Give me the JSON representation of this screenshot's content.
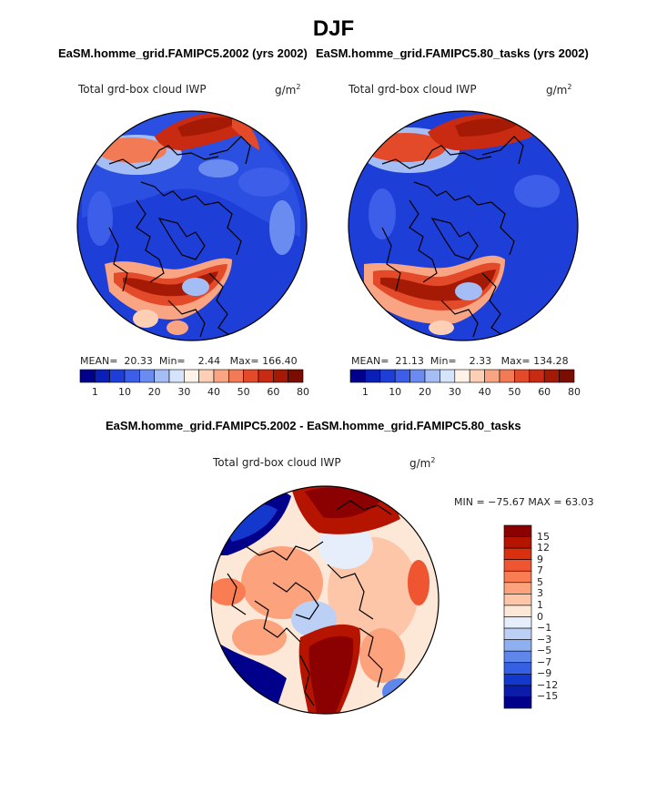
{
  "figure": {
    "season_title": "DJF",
    "panel_left_title": "EaSM.homme_grid.FAMIPC5.2002 (yrs 2002)",
    "panel_right_title": "EaSM.homme_grid.FAMIPC5.80_tasks (yrs 2002)",
    "panel_diff_title": "EaSM.homme_grid.FAMIPC5.2002 - EaSM.homme_grid.FAMIPC5.80_tasks"
  },
  "chart_data": [
    {
      "type": "heatmap",
      "projection": "north polar stereographic",
      "title": "EaSM.homme_grid.FAMIPC5.2002 (yrs 2002)",
      "variable": "Total grd-box cloud IWP",
      "units_label": "g/m",
      "units_exp": "2",
      "stats": {
        "mean": "20.33",
        "min": "2.44",
        "max": "166.40"
      },
      "colorbar_levels": [
        "1",
        "10",
        "20",
        "30",
        "40",
        "50",
        "60",
        "80"
      ],
      "colorbar_colors": [
        "#00008b",
        "#0a1fb8",
        "#1e3ed8",
        "#3d5ee8",
        "#6a8cf0",
        "#a4bdf5",
        "#d5e3fb",
        "#fff2e8",
        "#fdcfb4",
        "#f9a583",
        "#f27a55",
        "#e24a2a",
        "#c82a12",
        "#a51a05",
        "#7a0c00"
      ]
    },
    {
      "type": "heatmap",
      "projection": "north polar stereographic",
      "title": "EaSM.homme_grid.FAMIPC5.80_tasks (yrs 2002)",
      "variable": "Total grd-box cloud IWP",
      "units_label": "g/m",
      "units_exp": "2",
      "stats": {
        "mean": "21.13",
        "min": "2.33",
        "max": "134.28"
      },
      "colorbar_levels": [
        "1",
        "10",
        "20",
        "30",
        "40",
        "50",
        "60",
        "80"
      ],
      "colorbar_colors": [
        "#00008b",
        "#0a1fb8",
        "#1e3ed8",
        "#3d5ee8",
        "#6a8cf0",
        "#a4bdf5",
        "#d5e3fb",
        "#fff2e8",
        "#fdcfb4",
        "#f9a583",
        "#f27a55",
        "#e24a2a",
        "#c82a12",
        "#a51a05",
        "#7a0c00"
      ]
    },
    {
      "type": "heatmap",
      "projection": "north polar stereographic",
      "title": "EaSM.homme_grid.FAMIPC5.2002 - EaSM.homme_grid.FAMIPC5.80_tasks",
      "variable": "Total grd-box cloud IWP",
      "units_label": "g/m",
      "units_exp": "2",
      "stats": {
        "min": "-75.67",
        "max": "63.03"
      },
      "stats_label": "MIN = −75.67 MAX =  63.03",
      "colorbar_levels": [
        "15",
        "12",
        "9",
        "7",
        "5",
        "3",
        "1",
        "0",
        "−1",
        "−3",
        "−5",
        "−7",
        "−9",
        "−12",
        "−15"
      ],
      "colorbar_colors": [
        "#8b0000",
        "#b51400",
        "#d93010",
        "#ef5530",
        "#f97c52",
        "#fca27c",
        "#fdc6a8",
        "#fde8d8",
        "#e6eefc",
        "#bcd0f6",
        "#8fb0f0",
        "#5f86ea",
        "#3660e2",
        "#1438cc",
        "#0a1ca8",
        "#00008b"
      ]
    }
  ]
}
